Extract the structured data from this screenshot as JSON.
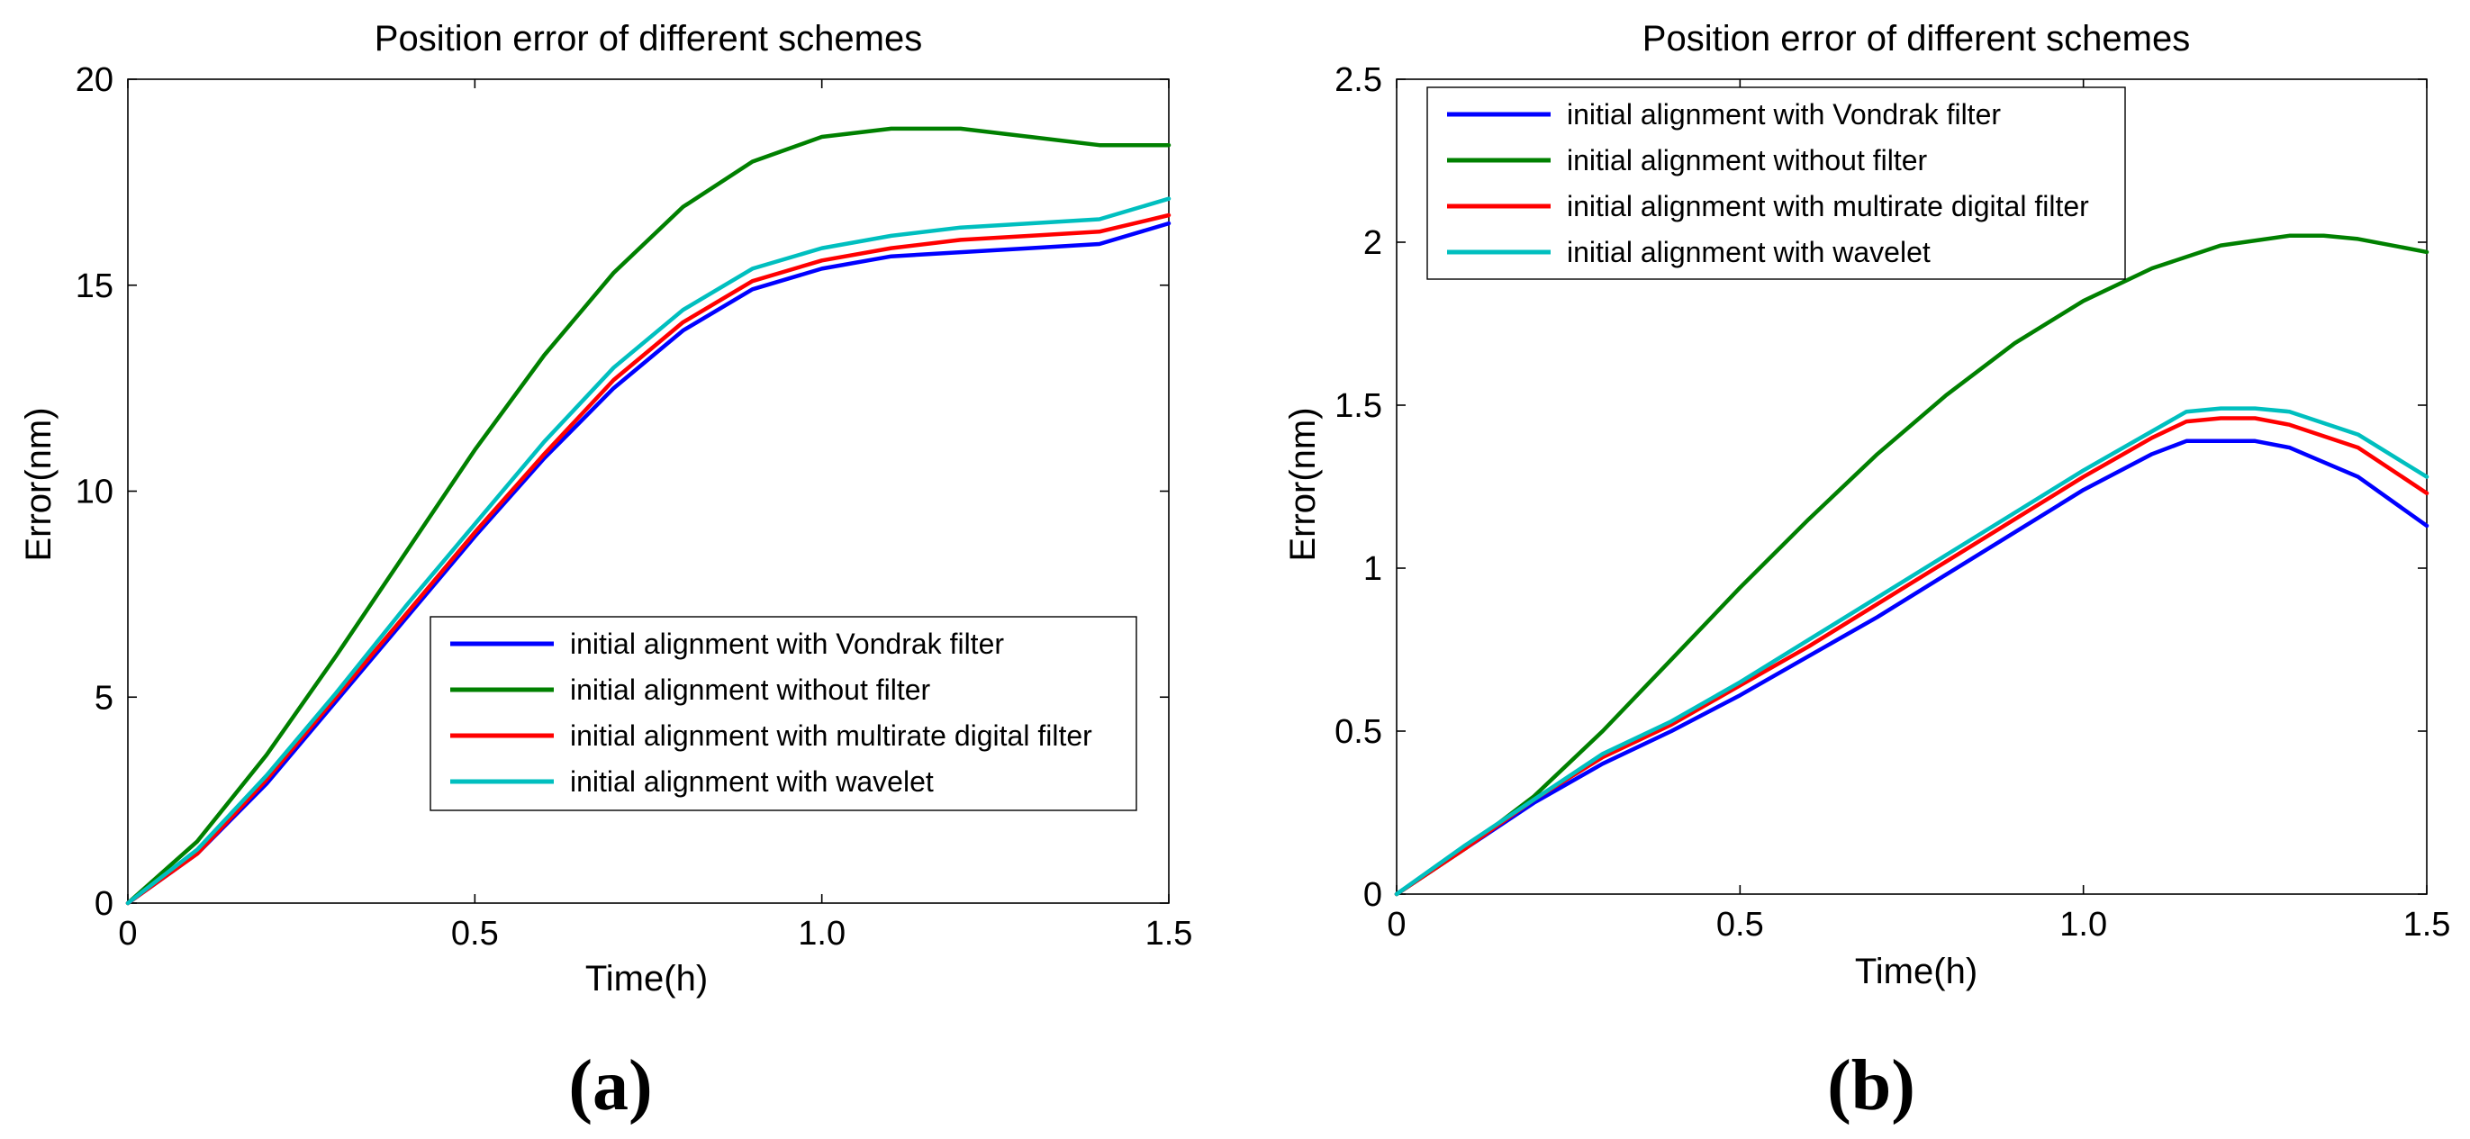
{
  "chart_data": [
    {
      "type": "line",
      "panel_label": "(a)",
      "title": "Position error of different schemes",
      "xlabel": "Time(h)",
      "ylabel": "Error(nm)",
      "xlim": [
        0,
        1.5
      ],
      "ylim": [
        0,
        20
      ],
      "xticks": [
        0,
        0.5,
        1.0,
        1.5
      ],
      "xtick_labels": [
        "0",
        "0.5",
        "1.0",
        "1.5"
      ],
      "yticks": [
        0,
        5,
        10,
        15,
        20
      ],
      "ytick_labels": [
        "0",
        "5",
        "10",
        "15",
        "20"
      ],
      "legend_position": "lower-right",
      "series": [
        {
          "name": "initial alignment with Vondrak filter",
          "color": "#0000ff",
          "x": [
            0,
            0.1,
            0.2,
            0.3,
            0.4,
            0.5,
            0.6,
            0.7,
            0.8,
            0.9,
            1.0,
            1.1,
            1.2,
            1.3,
            1.4,
            1.5
          ],
          "y": [
            0,
            1.2,
            2.9,
            4.9,
            6.9,
            8.9,
            10.8,
            12.5,
            13.9,
            14.9,
            15.4,
            15.7,
            15.8,
            15.9,
            16.0,
            16.5
          ]
        },
        {
          "name": "initial alignment without filter",
          "color": "#008000",
          "x": [
            0,
            0.1,
            0.2,
            0.3,
            0.4,
            0.5,
            0.6,
            0.7,
            0.8,
            0.9,
            1.0,
            1.1,
            1.2,
            1.3,
            1.4,
            1.5
          ],
          "y": [
            0,
            1.5,
            3.6,
            6.0,
            8.5,
            11.0,
            13.3,
            15.3,
            16.9,
            18.0,
            18.6,
            18.8,
            18.8,
            18.6,
            18.4,
            18.4
          ]
        },
        {
          "name": "initial alignment with multirate digital filter",
          "color": "#ff0000",
          "x": [
            0,
            0.1,
            0.2,
            0.3,
            0.4,
            0.5,
            0.6,
            0.7,
            0.8,
            0.9,
            1.0,
            1.1,
            1.2,
            1.3,
            1.4,
            1.5
          ],
          "y": [
            0,
            1.2,
            3.0,
            5.0,
            7.0,
            9.0,
            10.9,
            12.7,
            14.1,
            15.1,
            15.6,
            15.9,
            16.1,
            16.2,
            16.3,
            16.7
          ]
        },
        {
          "name": "initial alignment with wavelet",
          "color": "#00bfbf",
          "x": [
            0,
            0.1,
            0.2,
            0.3,
            0.4,
            0.5,
            0.6,
            0.7,
            0.8,
            0.9,
            1.0,
            1.1,
            1.2,
            1.3,
            1.4,
            1.5
          ],
          "y": [
            0,
            1.3,
            3.1,
            5.1,
            7.2,
            9.2,
            11.2,
            13.0,
            14.4,
            15.4,
            15.9,
            16.2,
            16.4,
            16.5,
            16.6,
            17.1
          ]
        }
      ]
    },
    {
      "type": "line",
      "panel_label": "(b)",
      "title": "Position error of different schemes",
      "xlabel": "Time(h)",
      "ylabel": "Error(nm)",
      "xlim": [
        0,
        1.5
      ],
      "ylim": [
        0,
        2.5
      ],
      "xticks": [
        0,
        0.5,
        1.0,
        1.5
      ],
      "xtick_labels": [
        "0",
        "0.5",
        "1.0",
        "1.5"
      ],
      "yticks": [
        0,
        0.5,
        1,
        1.5,
        2,
        2.5
      ],
      "ytick_labels": [
        "0",
        "0.5",
        "1",
        "1.5",
        "2",
        "2.5"
      ],
      "legend_position": "top-left",
      "series": [
        {
          "name": "initial alignment with Vondrak filter",
          "color": "#0000ff",
          "x": [
            0,
            0.1,
            0.2,
            0.3,
            0.4,
            0.5,
            0.6,
            0.7,
            0.8,
            0.9,
            1.0,
            1.1,
            1.15,
            1.2,
            1.25,
            1.3,
            1.4,
            1.5
          ],
          "y": [
            0,
            0.14,
            0.28,
            0.4,
            0.5,
            0.61,
            0.73,
            0.85,
            0.98,
            1.11,
            1.24,
            1.35,
            1.39,
            1.39,
            1.39,
            1.37,
            1.28,
            1.13
          ]
        },
        {
          "name": "initial alignment without filter",
          "color": "#008000",
          "x": [
            0,
            0.1,
            0.2,
            0.3,
            0.4,
            0.5,
            0.6,
            0.7,
            0.8,
            0.9,
            1.0,
            1.1,
            1.2,
            1.3,
            1.35,
            1.4,
            1.5
          ],
          "y": [
            0,
            0.14,
            0.3,
            0.5,
            0.72,
            0.94,
            1.15,
            1.35,
            1.53,
            1.69,
            1.82,
            1.92,
            1.99,
            2.02,
            2.02,
            2.01,
            1.97
          ]
        },
        {
          "name": "initial alignment with multirate digital filter",
          "color": "#ff0000",
          "x": [
            0,
            0.1,
            0.2,
            0.3,
            0.4,
            0.5,
            0.6,
            0.7,
            0.8,
            0.9,
            1.0,
            1.1,
            1.15,
            1.2,
            1.25,
            1.3,
            1.4,
            1.5
          ],
          "y": [
            0,
            0.14,
            0.29,
            0.42,
            0.52,
            0.64,
            0.76,
            0.89,
            1.02,
            1.15,
            1.28,
            1.4,
            1.45,
            1.46,
            1.46,
            1.44,
            1.37,
            1.23
          ]
        },
        {
          "name": "initial alignment with wavelet",
          "color": "#00bfbf",
          "x": [
            0,
            0.1,
            0.2,
            0.3,
            0.4,
            0.5,
            0.6,
            0.7,
            0.8,
            0.9,
            1.0,
            1.1,
            1.15,
            1.2,
            1.25,
            1.3,
            1.4,
            1.5
          ],
          "y": [
            0,
            0.15,
            0.29,
            0.43,
            0.53,
            0.65,
            0.78,
            0.91,
            1.04,
            1.17,
            1.3,
            1.42,
            1.48,
            1.49,
            1.49,
            1.48,
            1.41,
            1.28
          ]
        }
      ]
    }
  ]
}
